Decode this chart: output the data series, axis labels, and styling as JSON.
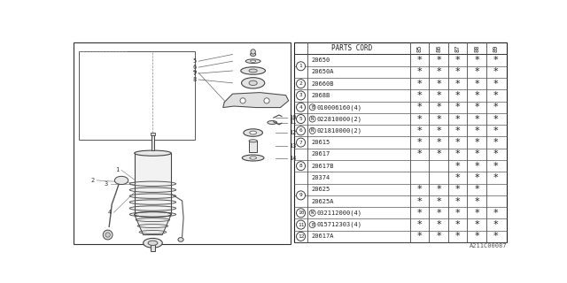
{
  "bg_color": "#ffffff",
  "header": [
    "PARTS CORD",
    "85",
    "86",
    "87",
    "88",
    "89"
  ],
  "rows": [
    {
      "ref": "1",
      "part": "20650",
      "stars": [
        1,
        1,
        1,
        1,
        1
      ],
      "prefix": "",
      "ref_span": 2
    },
    {
      "ref": "",
      "part": "20650A",
      "stars": [
        1,
        1,
        1,
        1,
        1
      ],
      "prefix": "",
      "ref_span": 0
    },
    {
      "ref": "2",
      "part": "20660B",
      "stars": [
        1,
        1,
        1,
        1,
        1
      ],
      "prefix": "",
      "ref_span": 1
    },
    {
      "ref": "3",
      "part": "2068B",
      "stars": [
        1,
        1,
        1,
        1,
        1
      ],
      "prefix": "",
      "ref_span": 1
    },
    {
      "ref": "4",
      "part": "010006160(4)",
      "stars": [
        1,
        1,
        1,
        1,
        1
      ],
      "prefix": "B",
      "ref_span": 1
    },
    {
      "ref": "5",
      "part": "022810000(2)",
      "stars": [
        1,
        1,
        1,
        1,
        1
      ],
      "prefix": "N",
      "ref_span": 1
    },
    {
      "ref": "6",
      "part": "021810000(2)",
      "stars": [
        1,
        1,
        1,
        1,
        1
      ],
      "prefix": "N",
      "ref_span": 1
    },
    {
      "ref": "7",
      "part": "20615",
      "stars": [
        1,
        1,
        1,
        1,
        1
      ],
      "prefix": "",
      "ref_span": 1
    },
    {
      "ref": "8",
      "part": "20617",
      "stars": [
        1,
        1,
        1,
        1,
        1
      ],
      "prefix": "",
      "ref_span": 3
    },
    {
      "ref": "",
      "part": "20617B",
      "stars": [
        0,
        0,
        1,
        1,
        1
      ],
      "prefix": "",
      "ref_span": 0
    },
    {
      "ref": "",
      "part": "20374",
      "stars": [
        0,
        0,
        1,
        1,
        1
      ],
      "prefix": "",
      "ref_span": 0
    },
    {
      "ref": "9",
      "part": "20625",
      "stars": [
        1,
        1,
        1,
        1,
        0
      ],
      "prefix": "",
      "ref_span": 2
    },
    {
      "ref": "",
      "part": "20625A",
      "stars": [
        1,
        1,
        1,
        1,
        0
      ],
      "prefix": "",
      "ref_span": 0
    },
    {
      "ref": "10",
      "part": "032112000(4)",
      "stars": [
        1,
        1,
        1,
        1,
        1
      ],
      "prefix": "W",
      "ref_span": 1
    },
    {
      "ref": "11",
      "part": "015712303(4)",
      "stars": [
        1,
        1,
        1,
        1,
        1
      ],
      "prefix": "B",
      "ref_span": 1
    },
    {
      "ref": "12",
      "part": "20617A",
      "stars": [
        1,
        1,
        1,
        1,
        1
      ],
      "prefix": "",
      "ref_span": 1
    }
  ],
  "footer_code": "A211C00087"
}
